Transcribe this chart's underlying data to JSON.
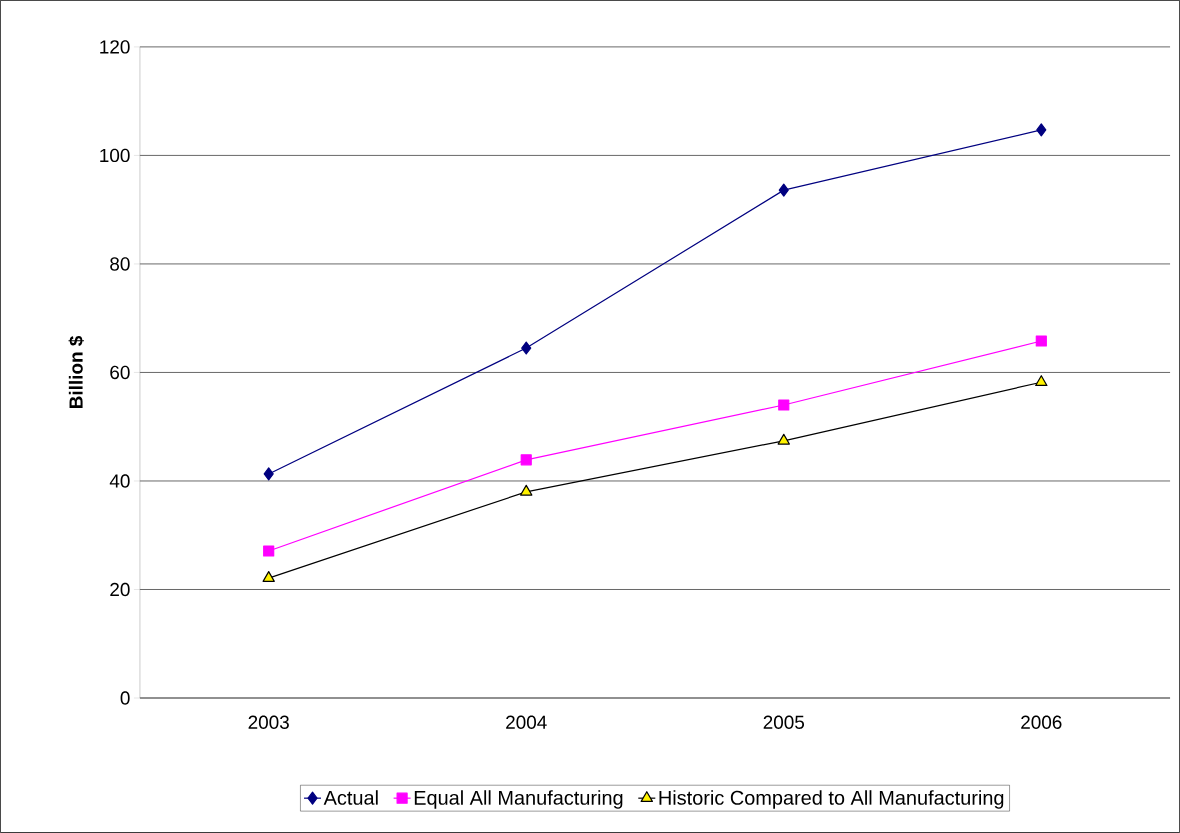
{
  "chart_data": {
    "type": "line",
    "ylabel": "Billion $",
    "categories": [
      "2003",
      "2004",
      "2005",
      "2006"
    ],
    "series": [
      {
        "name": "Actual",
        "color": "#000080",
        "marker": "diamond",
        "values": [
          41.3,
          64.5,
          93.6,
          104.7
        ]
      },
      {
        "name": "Equal All Manufacturing",
        "color": "#ff00ff",
        "marker": "square",
        "values": [
          27.1,
          43.9,
          54.0,
          65.8
        ]
      },
      {
        "name": "Historic Compared to All Manufacturing",
        "color": "#000000",
        "marker": "triangle",
        "values": [
          22.1,
          38.0,
          47.4,
          58.2
        ]
      }
    ],
    "ylim": [
      0,
      120
    ],
    "yticks": [
      0,
      20,
      40,
      60,
      80,
      100,
      120
    ],
    "grid": "y",
    "legend": "bottom",
    "line_style": "solid"
  }
}
